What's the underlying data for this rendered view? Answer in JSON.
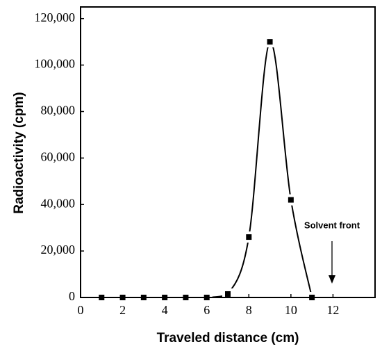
{
  "chart_data": {
    "type": "line",
    "x_label": "Traveled distance (cm)",
    "y_label": "Radioactivity (cpm)",
    "x": [
      1,
      2,
      3,
      4,
      5,
      6,
      7,
      8,
      9,
      10,
      11
    ],
    "series": [
      {
        "color": "#000000",
        "values": [
          0,
          0,
          0,
          0,
          0,
          0,
          1500,
          26000,
          110000,
          42000,
          0
        ]
      }
    ],
    "xlim": [
      0,
      14
    ],
    "xticks": [
      0,
      2,
      4,
      6,
      8,
      10,
      12
    ],
    "ylim": [
      0,
      125000
    ],
    "yticks": [
      0,
      {
        "value": 20000,
        "label": "20,000"
      },
      {
        "value": 40000,
        "label": "40,000"
      },
      {
        "value": 60000,
        "label": "60,000"
      },
      {
        "value": 80000,
        "label": "80,000"
      },
      {
        "value": 100000,
        "label": "100,000"
      },
      {
        "value": 120000,
        "label": "120,000"
      }
    ],
    "annotation": "Solvent front"
  }
}
